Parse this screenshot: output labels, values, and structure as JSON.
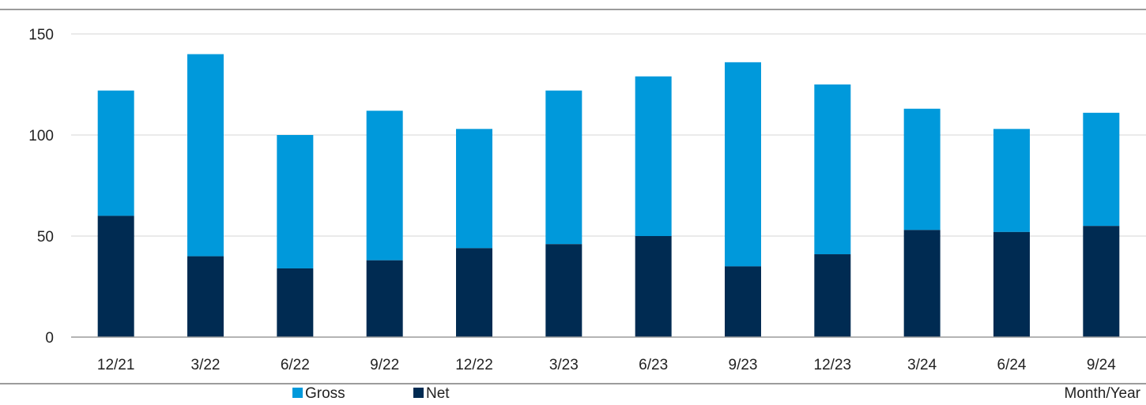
{
  "chart_data": {
    "type": "bar",
    "stacked": true,
    "categories": [
      "12/21",
      "3/22",
      "6/22",
      "9/22",
      "12/22",
      "3/23",
      "6/23",
      "9/23",
      "12/23",
      "3/24",
      "6/24",
      "9/24"
    ],
    "series": [
      {
        "name": "Net",
        "color": "#002b52",
        "values": [
          60,
          40,
          34,
          38,
          44,
          46,
          50,
          35,
          41,
          53,
          52,
          55
        ]
      },
      {
        "name": "Gross",
        "color": "#0099db",
        "total_values": [
          122,
          140,
          100,
          112,
          103,
          122,
          129,
          136,
          125,
          113,
          103,
          111
        ]
      }
    ],
    "legend": [
      "Gross",
      "Net"
    ],
    "legend_position": "bottom",
    "xlabel": "Month/Year",
    "ylim": [
      0,
      150
    ],
    "y_ticks": [
      "0",
      "50",
      "100",
      "150"
    ],
    "y_tick_values": [
      0,
      50,
      100,
      150
    ],
    "grid": true
  }
}
